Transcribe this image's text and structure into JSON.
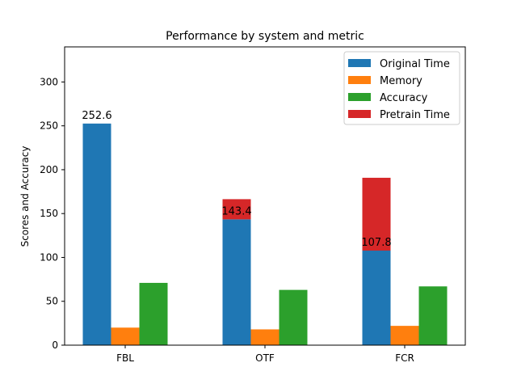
{
  "chart_data": {
    "type": "bar",
    "title": "Performance by system and metric",
    "xlabel": "",
    "ylabel": "Scores and Accuracy",
    "categories": [
      "FBL",
      "OTF",
      "FCR"
    ],
    "ylim": [
      0,
      340
    ],
    "yticks": [
      0,
      50,
      100,
      150,
      200,
      250,
      300
    ],
    "grid": false,
    "legend_position": "top-right",
    "series": [
      {
        "name": "Original Time",
        "color": "#1f77b4",
        "values": [
          252.6,
          143.4,
          107.8
        ],
        "group": 0
      },
      {
        "name": "Memory",
        "color": "#ff7f0e",
        "values": [
          20,
          18,
          22
        ],
        "group": 1
      },
      {
        "name": "Accuracy",
        "color": "#2ca02c",
        "values": [
          71,
          63,
          67
        ],
        "group": 2
      },
      {
        "name": "Pretrain Time",
        "color": "#d62728",
        "values": [
          0,
          23,
          83
        ],
        "group": 0,
        "stacked_on": "Original Time"
      }
    ],
    "data_labels": [
      "252.6",
      "143.4",
      "107.8"
    ]
  }
}
